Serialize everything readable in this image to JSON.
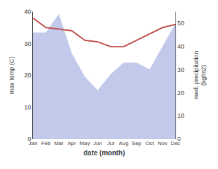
{
  "chart_data": {
    "type": "line",
    "categories": [
      "Jan",
      "Feb",
      "Mar",
      "Apr",
      "May",
      "Jun",
      "Jul",
      "Aug",
      "Sep",
      "Oct",
      "Nov",
      "Dec"
    ],
    "series": [
      {
        "type": "area",
        "axis": "y2",
        "color": "#b8c0e8",
        "values": [
          46,
          46,
          54,
          37,
          27,
          21,
          28,
          33,
          33,
          30,
          40,
          50
        ]
      },
      {
        "type": "line",
        "color": "#c0504d",
        "values": [
          38,
          35,
          34.5,
          34,
          31,
          30.5,
          29,
          29,
          31,
          33,
          35,
          36
        ]
      }
    ],
    "xlabel": "date (month)",
    "ylabel": "max temp (C)",
    "y2label": "med. precipitation\n(kg/m2)",
    "ylim": [
      0,
      40
    ],
    "yticks": [
      0,
      10,
      20,
      30,
      40
    ],
    "y2lim": [
      0,
      55
    ],
    "y2ticks": [
      0,
      10,
      20,
      30,
      40,
      50
    ],
    "grid": false
  }
}
